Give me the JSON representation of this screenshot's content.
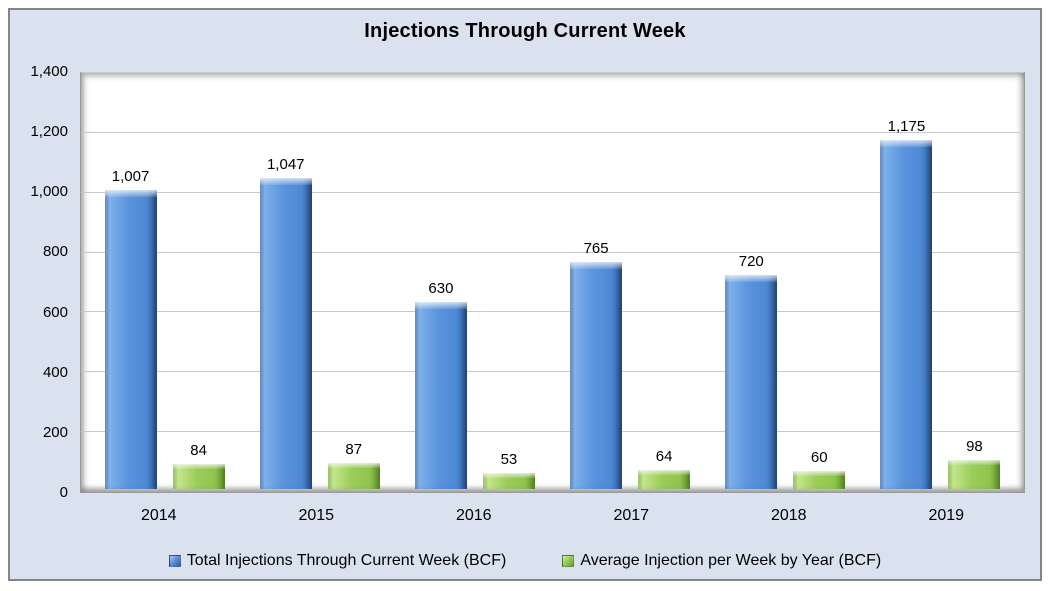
{
  "title": "Injections Through Current Week",
  "colors": {
    "chart_background": "#dae2f0",
    "plot_background": "#ffffff",
    "frame_border": "#858585",
    "gridline": "#c7cacd",
    "series_blue": "#5b94dd",
    "series_green": "#9ccd5c",
    "text": "#000000"
  },
  "chart_data": {
    "type": "bar",
    "title": "Injections Through Current Week",
    "categories": [
      "2014",
      "2015",
      "2016",
      "2017",
      "2018",
      "2019"
    ],
    "series": [
      {
        "name": "Total Injections Through Current Week (BCF)",
        "key": "total-injections",
        "color": "#5b94dd",
        "values": [
          1007,
          1047,
          630,
          765,
          720,
          1175
        ],
        "labels": [
          "1,007",
          "1,047",
          "630",
          "765",
          "720",
          "1,175"
        ]
      },
      {
        "name": "Average Injection per Week by Year (BCF)",
        "key": "average-injection",
        "color": "#9ccd5c",
        "values": [
          84,
          87,
          53,
          64,
          60,
          98
        ],
        "labels": [
          "84",
          "87",
          "53",
          "64",
          "60",
          "98"
        ]
      }
    ],
    "xlabel": "",
    "ylabel": "",
    "ylim": [
      0,
      1400
    ],
    "yticks": [
      0,
      200,
      400,
      600,
      800,
      1000,
      1200,
      1400
    ],
    "ytick_labels": [
      "0",
      "200",
      "400",
      "600",
      "800",
      "1,000",
      "1,200",
      "1,400"
    ],
    "grid": true,
    "data_labels": true,
    "legend_position": "bottom"
  },
  "legend": {
    "items": [
      {
        "label": "Total Injections Through Current Week (BCF)",
        "marker": "blue-square"
      },
      {
        "label": "Average Injection per Week by Year (BCF)",
        "marker": "green-square"
      }
    ]
  }
}
